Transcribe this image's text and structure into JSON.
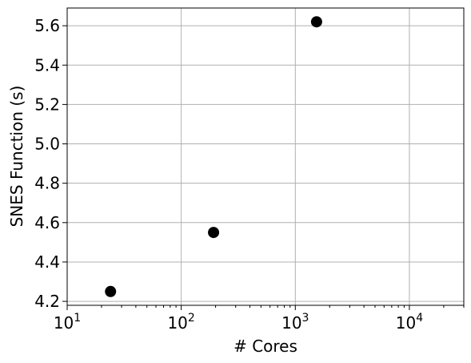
{
  "chart_data": {
    "type": "scatter",
    "title": "",
    "xlabel": "# Cores",
    "ylabel": "SNES Function (s)",
    "x_scale": "log",
    "xlim": [
      10,
      30000
    ],
    "ylim": [
      4.18,
      5.69
    ],
    "grid": true,
    "x_ticks": [
      {
        "base": "10",
        "exp": "1",
        "value": 10
      },
      {
        "base": "10",
        "exp": "2",
        "value": 100
      },
      {
        "base": "10",
        "exp": "3",
        "value": 1000
      },
      {
        "base": "10",
        "exp": "4",
        "value": 10000
      }
    ],
    "y_ticks": [
      "4.2",
      "4.4",
      "4.6",
      "4.8",
      "5.0",
      "5.2",
      "5.4",
      "5.6"
    ],
    "marker_color": "#000000",
    "series": [
      {
        "x": [
          24,
          192,
          1536
        ],
        "y": [
          4.25,
          4.55,
          5.62
        ]
      }
    ]
  }
}
